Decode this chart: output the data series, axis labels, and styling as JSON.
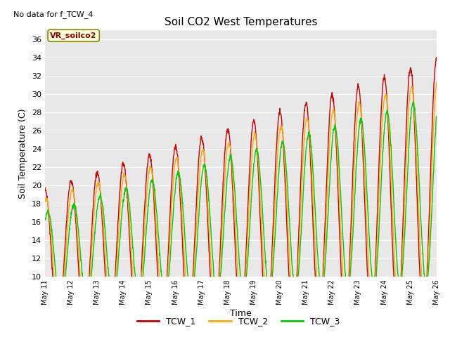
{
  "title": "Soil CO2 West Temperatures",
  "xlabel": "Time",
  "ylabel": "Soil Temperature (C)",
  "no_data_text": "No data for f_TCW_4",
  "annotation_text": "VR_soilco2",
  "ylim": [
    10,
    37
  ],
  "yticks": [
    10,
    12,
    14,
    16,
    18,
    20,
    22,
    24,
    26,
    28,
    30,
    32,
    34,
    36
  ],
  "legend_labels": [
    "TCW_1",
    "TCW_2",
    "TCW_3"
  ],
  "line_colors": [
    "#cc0000",
    "#ffaa00",
    "#00cc00"
  ],
  "background_color": "#e8e8e8",
  "xtick_days": [
    11,
    12,
    13,
    14,
    15,
    16,
    17,
    18,
    19,
    20,
    21,
    22,
    23,
    24,
    25,
    26
  ],
  "xtick_labels": [
    "May 11",
    "May 12",
    "May 13",
    "May 14",
    "May 15",
    "May 16",
    "May 17",
    "May 18",
    "May 19",
    "May 20",
    "May 21",
    "May 22",
    "May 23",
    "May 24",
    "May 25",
    "May 26"
  ]
}
